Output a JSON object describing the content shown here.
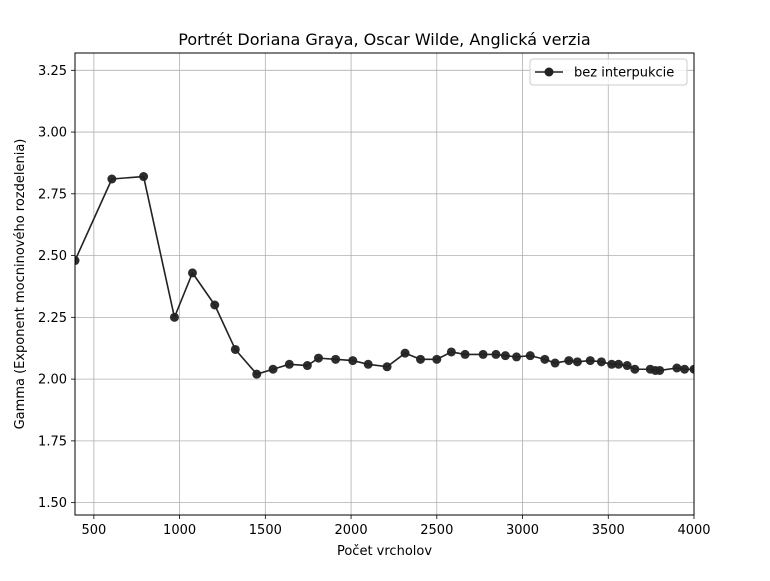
{
  "chart_data": {
    "type": "line",
    "title": "Portrét Doriana Graya, Oscar Wilde, Anglická verzia",
    "xlabel": "Počet vrcholov",
    "ylabel": "Gamma (Exponent mocninového rozdelenia)",
    "xlim": [
      390,
      4000
    ],
    "ylim": [
      1.45,
      3.32
    ],
    "xticks": [
      500,
      1000,
      1500,
      2000,
      2500,
      3000,
      3500,
      4000
    ],
    "yticks": [
      1.5,
      1.75,
      2.0,
      2.25,
      2.5,
      2.75,
      3.0,
      3.25
    ],
    "ytick_labels": [
      "1.50",
      "1.75",
      "2.00",
      "2.25",
      "2.50",
      "2.75",
      "3.00",
      "3.25"
    ],
    "grid": true,
    "legend_position": "top-right",
    "series": [
      {
        "name": "bez interpukcie",
        "color": "#222222",
        "marker": "circle",
        "x": [
          390,
          605,
          790,
          970,
          1075,
          1205,
          1325,
          1450,
          1545,
          1640,
          1745,
          1810,
          1910,
          2010,
          2100,
          2210,
          2315,
          2405,
          2500,
          2585,
          2665,
          2770,
          2845,
          2900,
          2965,
          3045,
          3130,
          3190,
          3270,
          3320,
          3395,
          3460,
          3520,
          3560,
          3610,
          3655,
          3745,
          3775,
          3800,
          3900,
          3945,
          4000
        ],
        "y": [
          2.48,
          2.81,
          2.82,
          2.25,
          2.43,
          2.3,
          2.12,
          2.02,
          2.04,
          2.06,
          2.055,
          2.085,
          2.08,
          2.075,
          2.06,
          2.05,
          2.105,
          2.08,
          2.08,
          2.11,
          2.1,
          2.1,
          2.1,
          2.095,
          2.09,
          2.095,
          2.08,
          2.065,
          2.075,
          2.07,
          2.075,
          2.07,
          2.06,
          2.06,
          2.055,
          2.04,
          2.04,
          2.035,
          2.035,
          2.045,
          2.04,
          2.04
        ]
      }
    ]
  }
}
